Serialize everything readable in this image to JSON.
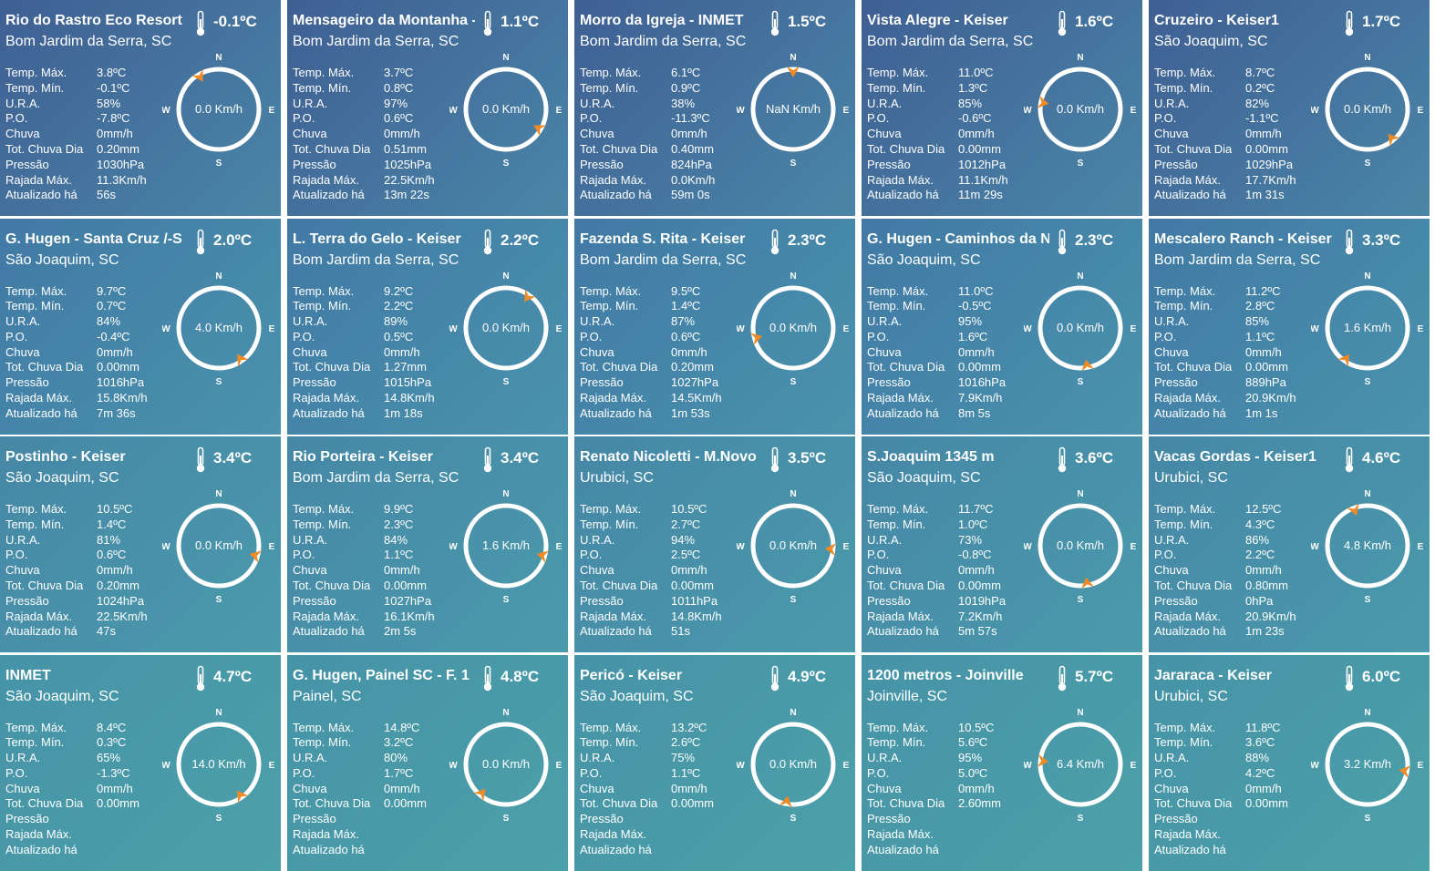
{
  "colors": {
    "row_gradients": [
      [
        "#3f5f93",
        "#4a86a8"
      ],
      [
        "#4179a5",
        "#4a93ad"
      ],
      [
        "#4687a6",
        "#4a9aac"
      ],
      [
        "#4693a7",
        "#4ca0aa"
      ]
    ],
    "arrow": "#f08a24",
    "ring": "#ffffff"
  },
  "icons": {
    "thermometer": "thermometer-icon",
    "wind_arrow": "wind-direction-arrow-icon"
  },
  "compass_labels": {
    "n": "N",
    "s": "S",
    "e": "E",
    "w": "W"
  },
  "stat_labels": [
    "Temp. Máx.",
    "Temp. Mín.",
    "U.R.A.",
    "P.O.",
    "Chuva",
    "Tot. Chuva Dia",
    "Pressão",
    "Rajada Máx.",
    "Atualizado há"
  ],
  "stations": [
    {
      "name": "Rio do Rastro Eco Resort",
      "location": "Bom Jardim da Serra, SC",
      "temp": "-0.1ºC",
      "wind": "0.0 Km/h",
      "wind_angle": -30,
      "values": [
        "3.8ºC",
        "-0.1ºC",
        "58%",
        "-7.8ºC",
        "0mm/h",
        "0.20mm",
        "1030hPa",
        "11.3Km/h",
        "56s"
      ]
    },
    {
      "name": "Mensageiro da Montanha -",
      "location": "Bom Jardim da Serra, SC",
      "temp": "1.1ºC",
      "wind": "0.0 Km/h",
      "wind_angle": 120,
      "values": [
        "3.7ºC",
        "0.8ºC",
        "97%",
        "0.6ºC",
        "0mm/h",
        "0.51mm",
        "1025hPa",
        "22.5Km/h",
        "13m 22s"
      ]
    },
    {
      "name": "Morro da Igreja - INMET",
      "location": "Bom Jardim da Serra, SC",
      "temp": "1.5ºC",
      "wind": "NaN Km/h",
      "wind_angle": 0,
      "values": [
        "6.1ºC",
        "0.9ºC",
        "38%",
        "-11.3ºC",
        "0mm/h",
        "0.40mm",
        "824hPa",
        "0.0Km/h",
        "59m 0s"
      ]
    },
    {
      "name": "Vista Alegre - Keiser",
      "location": "Bom Jardim da Serra, SC",
      "temp": "1.6ºC",
      "wind": "0.0 Km/h",
      "wind_angle": -80,
      "values": [
        "11.0ºC",
        "1.3ºC",
        "85%",
        "-0.6ºC",
        "0mm/h",
        "0.00mm",
        "1012hPa",
        "11.1Km/h",
        "11m 29s"
      ]
    },
    {
      "name": "Cruzeiro - Keiser1",
      "location": "São Joaquim, SC",
      "temp": "1.7ºC",
      "wind": "0.0 Km/h",
      "wind_angle": 140,
      "values": [
        "8.7ºC",
        "0.2ºC",
        "82%",
        "-1.1ºC",
        "0mm/h",
        "0.00mm",
        "1029hPa",
        "17.7Km/h",
        "1m 31s"
      ]
    },
    {
      "name": "G. Hugen - Santa Cruz /-S",
      "location": "São Joaquim, SC",
      "temp": "2.0ºC",
      "wind": "4.0 Km/h",
      "wind_angle": 145,
      "values": [
        "9.7ºC",
        "0.7ºC",
        "84%",
        "-0.4ºC",
        "0mm/h",
        "0.00mm",
        "1016hPa",
        "15.8Km/h",
        "7m 36s"
      ]
    },
    {
      "name": "L. Terra do Gelo - Keiser",
      "location": "Bom Jardim da Serra, SC",
      "temp": "2.2ºC",
      "wind": "0.0 Km/h",
      "wind_angle": 35,
      "values": [
        "9.2ºC",
        "2.2ºC",
        "89%",
        "0.5ºC",
        "0mm/h",
        "1.27mm",
        "1015hPa",
        "14.8Km/h",
        "1m 18s"
      ]
    },
    {
      "name": "Fazenda S. Rita - Keiser",
      "location": "Bom Jardim da Serra, SC",
      "temp": "2.3ºC",
      "wind": "0.0 Km/h",
      "wind_angle": -105,
      "values": [
        "9.5ºC",
        "1.4ºC",
        "87%",
        "0.6ºC",
        "0mm/h",
        "0.20mm",
        "1027hPa",
        "14.5Km/h",
        "1m 53s"
      ]
    },
    {
      "name": "G. Hugen - Caminhos da N",
      "location": "São Joaquim, SC",
      "temp": "2.3ºC",
      "wind": "0.0 Km/h",
      "wind_angle": 170,
      "values": [
        "11.0ºC",
        "-0.5ºC",
        "95%",
        "1.6ºC",
        "0mm/h",
        "0.00mm",
        "1016hPa",
        "7.9Km/h",
        "8m 5s"
      ]
    },
    {
      "name": "Mescalero Ranch - Keiser",
      "location": "Bom Jardim da Serra, SC",
      "temp": "3.3ºC",
      "wind": "1.6 Km/h",
      "wind_angle": -145,
      "values": [
        "11.2ºC",
        "2.8ºC",
        "85%",
        "1.1ºC",
        "0mm/h",
        "0.00mm",
        "889hPa",
        "20.9Km/h",
        "1m 1s"
      ]
    },
    {
      "name": "Postinho - Keiser",
      "location": "São Joaquim, SC",
      "temp": "3.4ºC",
      "wind": "0.0 Km/h",
      "wind_angle": 105,
      "values": [
        "10.5ºC",
        "1.4ºC",
        "81%",
        "0.6ºC",
        "0mm/h",
        "0.20mm",
        "1024hPa",
        "22.5Km/h",
        "47s"
      ]
    },
    {
      "name": "Rio Porteira - Keiser",
      "location": "Bom Jardim da Serra, SC",
      "temp": "3.4ºC",
      "wind": "1.6 Km/h",
      "wind_angle": 105,
      "values": [
        "9.9ºC",
        "2.3ºC",
        "84%",
        "1.1ºC",
        "0mm/h",
        "0.00mm",
        "1027hPa",
        "16.1Km/h",
        "2m 5s"
      ]
    },
    {
      "name": "Renato Nicoletti - M.Novo",
      "location": "Urubici, SC",
      "temp": "3.5ºC",
      "wind": "0.0 Km/h",
      "wind_angle": 95,
      "values": [
        "10.5ºC",
        "2.7ºC",
        "94%",
        "2.5ºC",
        "0mm/h",
        "0.00mm",
        "1011hPa",
        "14.8Km/h",
        "51s"
      ]
    },
    {
      "name": "S.Joaquim 1345 m",
      "location": "São Joaquim, SC",
      "temp": "3.6ºC",
      "wind": "0.0 Km/h",
      "wind_angle": 170,
      "values": [
        "11.7ºC",
        "1.0ºC",
        "73%",
        "-0.8ºC",
        "0mm/h",
        "0.00mm",
        "1019hPa",
        "7.2Km/h",
        "5m 57s"
      ]
    },
    {
      "name": "Vacas Gordas - Keiser1",
      "location": "Urubici, SC",
      "temp": "4.6ºC",
      "wind": "4.8 Km/h",
      "wind_angle": -20,
      "values": [
        "12.5ºC",
        "4.3ºC",
        "86%",
        "2.2ºC",
        "0mm/h",
        "0.80mm",
        "0hPa",
        "20.9Km/h",
        "1m 23s"
      ]
    },
    {
      "name": "INMET",
      "location": "São Joaquim, SC",
      "temp": "4.7ºC",
      "wind": "14.0 Km/h",
      "wind_angle": 145,
      "values": [
        "8.4ºC",
        "0.3ºC",
        "65%",
        "-1.3ºC",
        "0mm/h",
        "0.00mm",
        "",
        "",
        ""
      ]
    },
    {
      "name": "G. Hugen, Painel SC - F. 1",
      "location": "Painel, SC",
      "temp": "4.8ºC",
      "wind": "0.0 Km/h",
      "wind_angle": -140,
      "values": [
        "14.8ºC",
        "3.2ºC",
        "80%",
        "1.7ºC",
        "0mm/h",
        "0.00mm",
        "",
        "",
        ""
      ]
    },
    {
      "name": "Pericó - Keiser",
      "location": "São Joaquim, SC",
      "temp": "4.9ºC",
      "wind": "0.0 Km/h",
      "wind_angle": -170,
      "values": [
        "13.2ºC",
        "2.6ºC",
        "75%",
        "1.1ºC",
        "0mm/h",
        "0.00mm",
        "",
        "",
        ""
      ]
    },
    {
      "name": "1200 metros - Joinville",
      "location": "Joinville, SC",
      "temp": "5.7ºC",
      "wind": "6.4 Km/h",
      "wind_angle": -85,
      "values": [
        "10.5ºC",
        "5.6ºC",
        "95%",
        "5.0ºC",
        "0mm/h",
        "2.60mm",
        "",
        "",
        ""
      ]
    },
    {
      "name": "Jararaca - Keiser",
      "location": "Urubici, SC",
      "temp": "6.0ºC",
      "wind": "3.2 Km/h",
      "wind_angle": 100,
      "values": [
        "11.8ºC",
        "3.6ºC",
        "88%",
        "4.2ºC",
        "0mm/h",
        "0.00mm",
        "",
        "",
        ""
      ]
    }
  ]
}
